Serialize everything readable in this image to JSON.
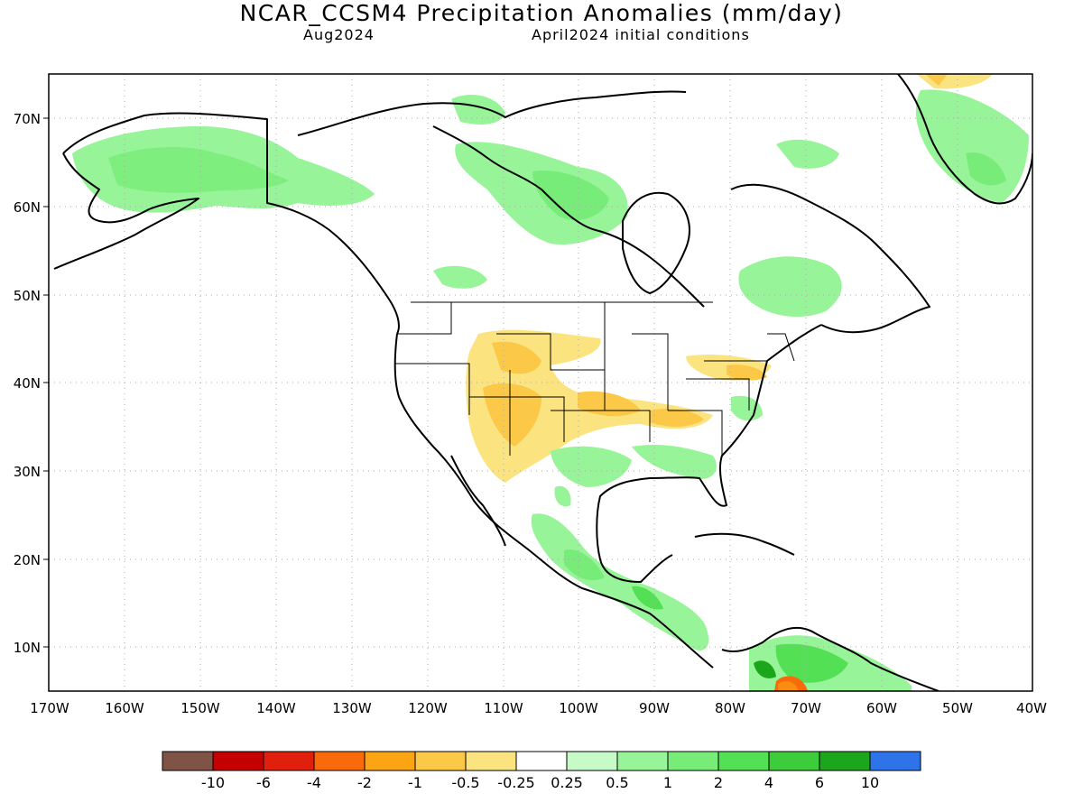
{
  "header": {
    "title": "NCAR_CCSM4 Precipitation Anomalies (mm/day)",
    "valid_month": "Aug2024",
    "initial_conditions": "April2024 initial conditions"
  },
  "map": {
    "lat_labels": [
      "70N",
      "60N",
      "50N",
      "40N",
      "30N",
      "20N",
      "10N"
    ],
    "lon_labels": [
      "170W",
      "160W",
      "150W",
      "140W",
      "130W",
      "120W",
      "110W",
      "100W",
      "90W",
      "80W",
      "70W",
      "60W",
      "50W",
      "40W"
    ]
  },
  "colorbar": {
    "colors": [
      "#7f5345",
      "#c40000",
      "#e0200c",
      "#f86a0a",
      "#fba414",
      "#fbc848",
      "#fbe480",
      "#ffffff",
      "#c6fac6",
      "#98f498",
      "#78ec78",
      "#54e054",
      "#3ccc3c",
      "#1ca61c",
      "#2e74e8"
    ],
    "tick_labels": [
      "-10",
      "-6",
      "-4",
      "-2",
      "-1",
      "-0.5",
      "-0.25",
      "0.25",
      "0.5",
      "1",
      "2",
      "4",
      "6",
      "10"
    ]
  }
}
